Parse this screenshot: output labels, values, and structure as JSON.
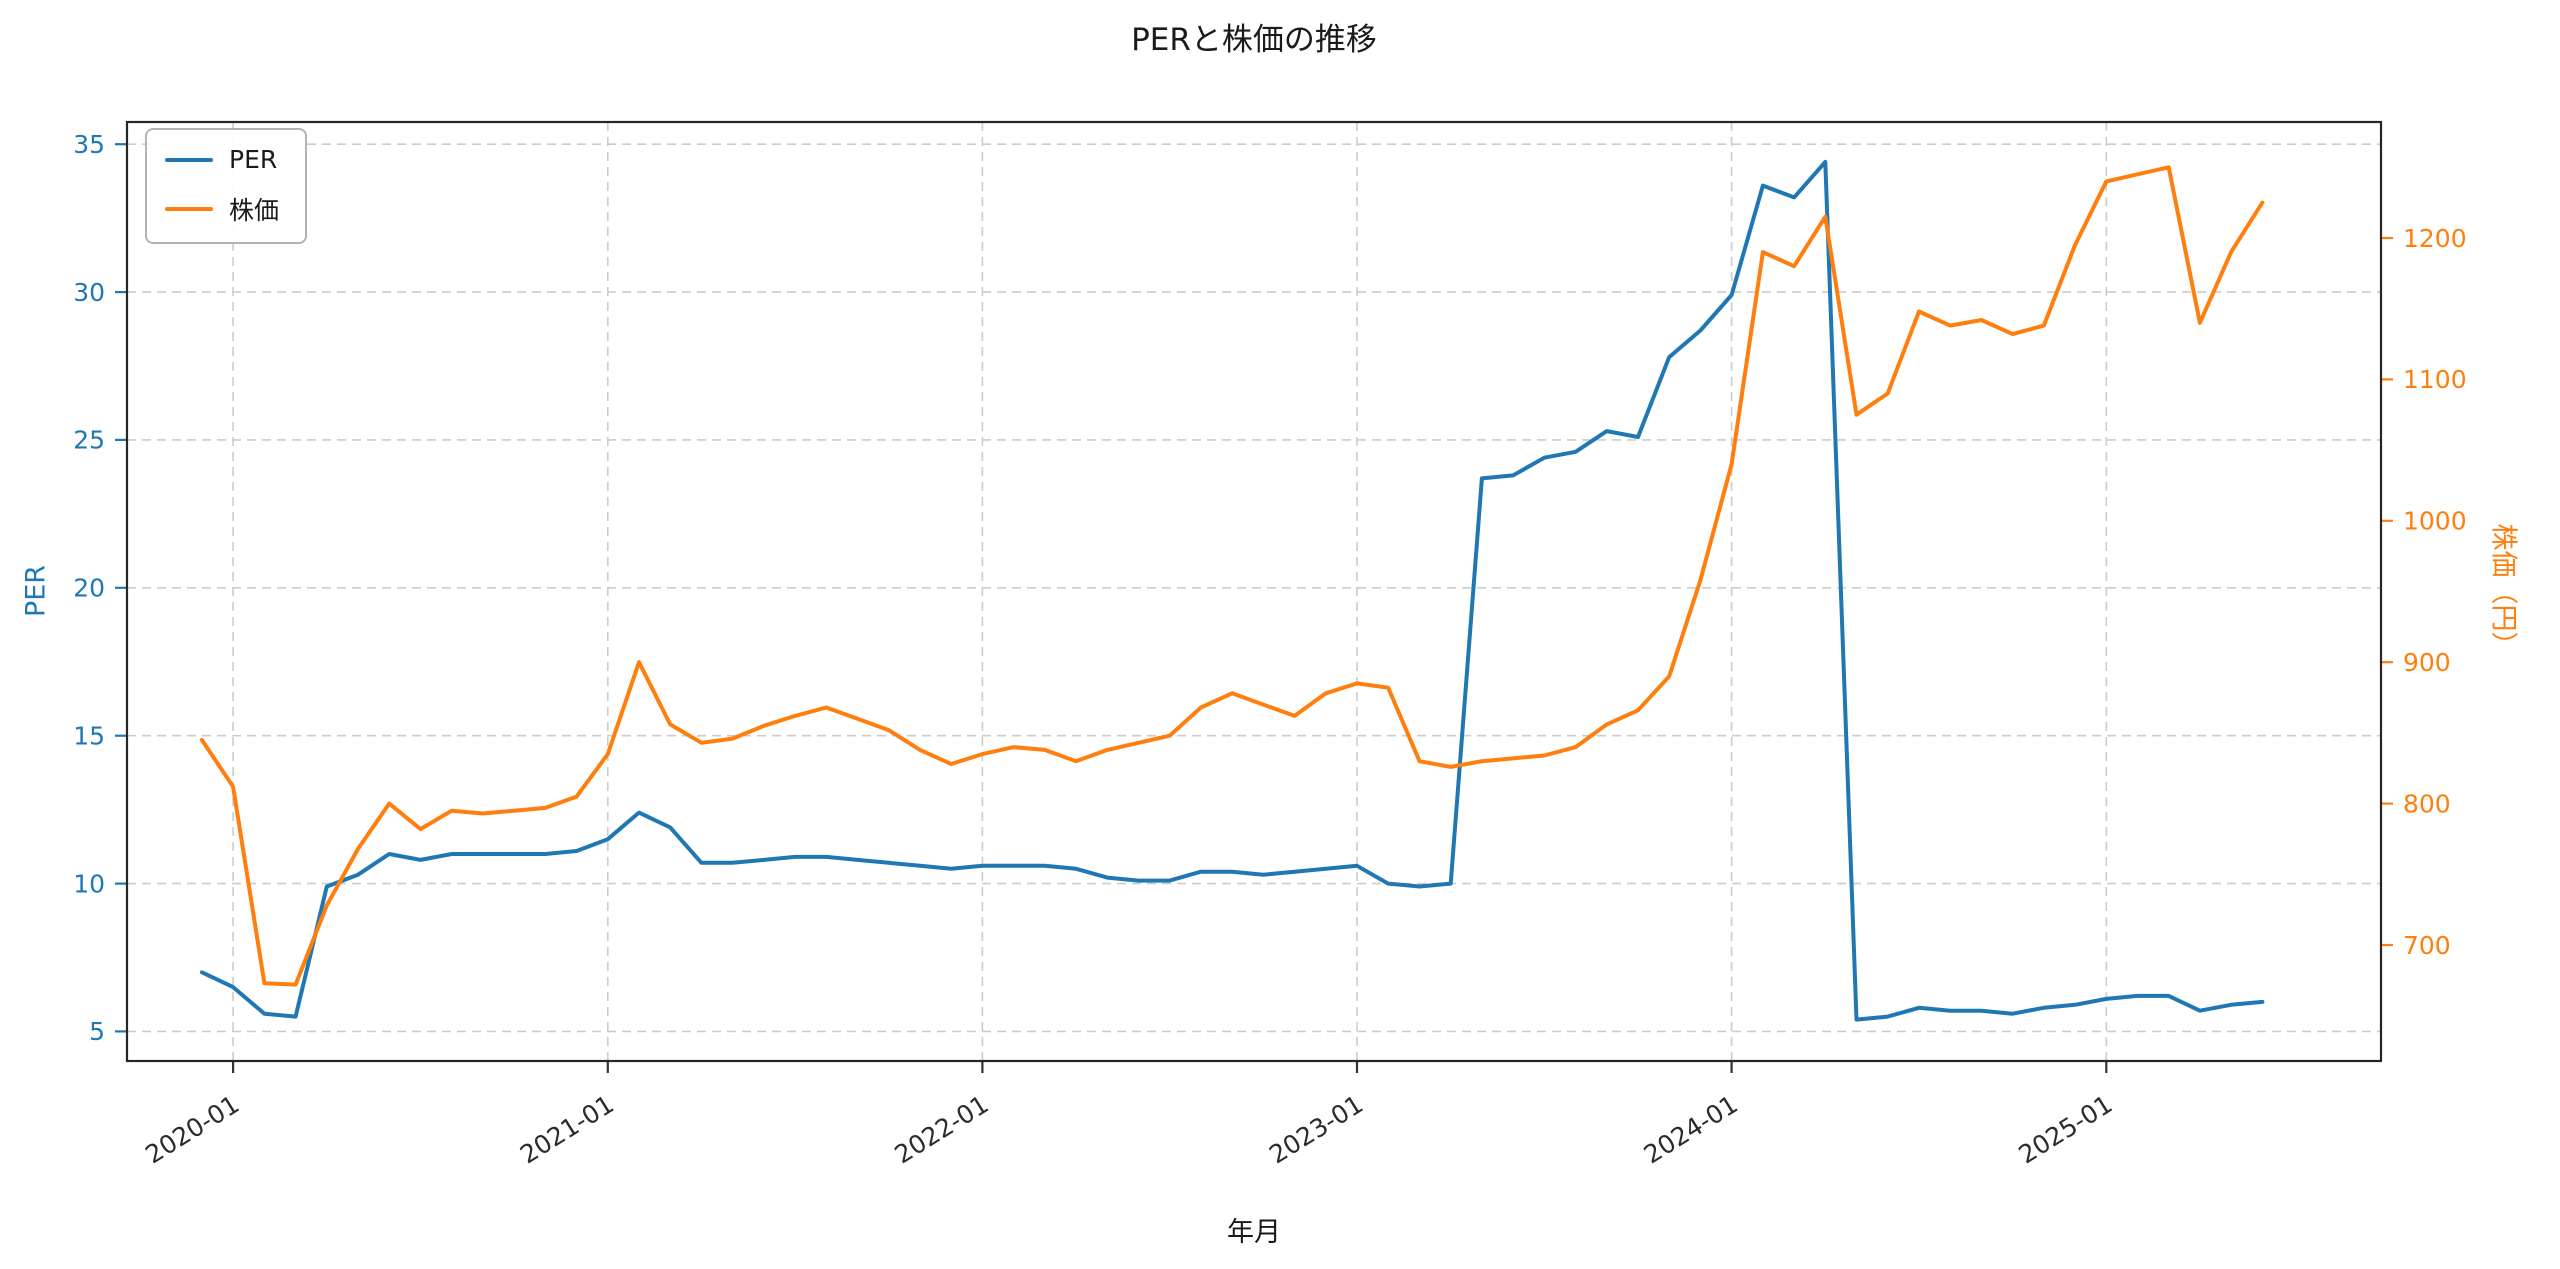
{
  "chart_data": {
    "type": "line",
    "title": "PERと株価の推移",
    "xlabel": "年月",
    "ylabel_left": "PER",
    "ylabel_right": "株価（円）",
    "grid": true,
    "legend_position": "upper left",
    "x": [
      "2019-12",
      "2020-01",
      "2020-02",
      "2020-03",
      "2020-04",
      "2020-05",
      "2020-06",
      "2020-07",
      "2020-08",
      "2020-09",
      "2020-10",
      "2020-11",
      "2020-12",
      "2021-01",
      "2021-02",
      "2021-03",
      "2021-04",
      "2021-05",
      "2021-06",
      "2021-07",
      "2021-08",
      "2021-09",
      "2021-10",
      "2021-11",
      "2021-12",
      "2022-01",
      "2022-02",
      "2022-03",
      "2022-04",
      "2022-05",
      "2022-06",
      "2022-07",
      "2022-08",
      "2022-09",
      "2022-10",
      "2022-11",
      "2022-12",
      "2023-01",
      "2023-02",
      "2023-03",
      "2023-04",
      "2023-05",
      "2023-06",
      "2023-07",
      "2023-08",
      "2023-09",
      "2023-10",
      "2023-11",
      "2023-12",
      "2024-01",
      "2024-02",
      "2024-03",
      "2024-04",
      "2024-05",
      "2024-06",
      "2024-07",
      "2024-08",
      "2024-09",
      "2024-10",
      "2024-11",
      "2024-12",
      "2025-01",
      "2025-02",
      "2025-03",
      "2025-04",
      "2025-05",
      "2025-06"
    ],
    "series": [
      {
        "name": "PER",
        "axis": "left",
        "color": "#1f77b4",
        "values": [
          7.0,
          6.5,
          5.6,
          5.5,
          9.9,
          10.3,
          11.0,
          10.8,
          11.0,
          11.0,
          11.0,
          11.0,
          11.1,
          11.5,
          12.4,
          11.9,
          10.7,
          10.7,
          10.8,
          10.9,
          10.9,
          10.8,
          10.7,
          10.6,
          10.5,
          10.6,
          10.6,
          10.6,
          10.5,
          10.2,
          10.1,
          10.1,
          10.4,
          10.4,
          10.3,
          10.4,
          10.5,
          10.6,
          10.0,
          9.9,
          10.0,
          23.7,
          23.8,
          24.4,
          24.6,
          25.3,
          25.1,
          27.8,
          28.7,
          29.9,
          33.6,
          33.2,
          34.4,
          5.4,
          5.5,
          5.8,
          5.7,
          5.7,
          5.6,
          5.8,
          5.9,
          6.1,
          6.2,
          6.2,
          5.7,
          5.9,
          6.0
        ]
      },
      {
        "name": "株価",
        "axis": "right",
        "color": "#ff7f0e",
        "values": [
          845,
          812,
          673,
          672,
          728,
          768,
          800,
          782,
          795,
          793,
          795,
          797,
          805,
          835,
          900,
          856,
          843,
          846,
          855,
          862,
          868,
          860,
          852,
          838,
          828,
          835,
          840,
          838,
          830,
          838,
          843,
          848,
          868,
          878,
          870,
          862,
          878,
          885,
          882,
          830,
          826,
          830,
          832,
          834,
          840,
          856,
          866,
          890,
          958,
          1040,
          1190,
          1180,
          1215,
          1075,
          1090,
          1148,
          1138,
          1142,
          1132,
          1138,
          1195,
          1240,
          1245,
          1250,
          1140,
          1190,
          1225
        ]
      }
    ],
    "axes": {
      "left": {
        "ticks": [
          5,
          10,
          15,
          20,
          25,
          30,
          35
        ],
        "lim": [
          4.0,
          35.75
        ],
        "color": "#1f77b4"
      },
      "right": {
        "ticks": [
          700,
          800,
          900,
          1000,
          1100,
          1200
        ],
        "lim": [
          618,
          1282
        ],
        "color": "#ff7f0e"
      },
      "x": {
        "tick_labels": [
          "2020-01",
          "2021-01",
          "2022-01",
          "2023-01",
          "2024-01",
          "2025-01"
        ],
        "lim": [
          -3.4,
          68.8
        ]
      }
    }
  }
}
